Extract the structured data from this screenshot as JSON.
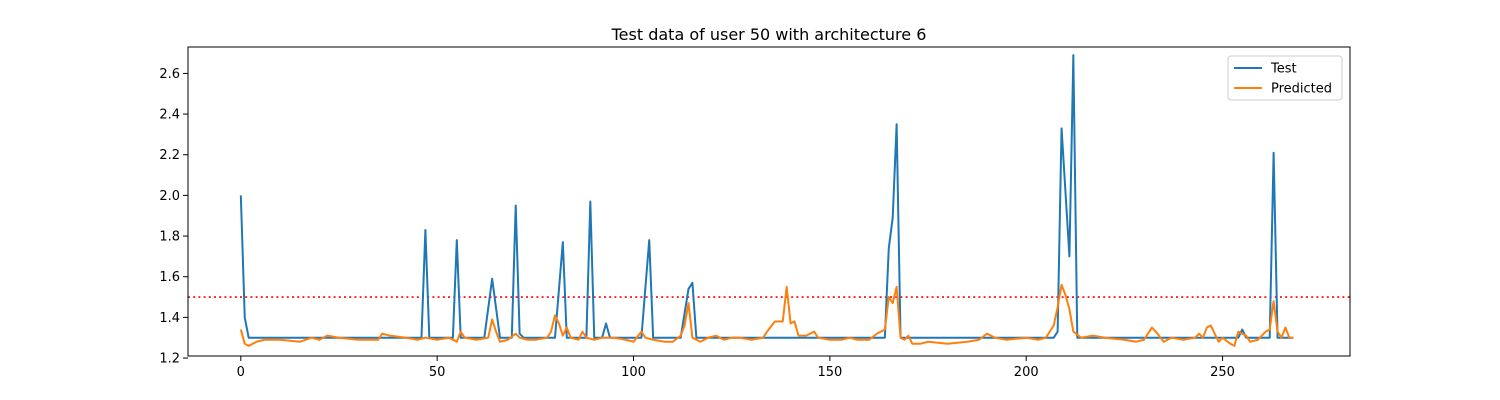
{
  "chart_data": {
    "type": "line",
    "title": "Test data of user 50 with architecture 6",
    "xlabel": "",
    "ylabel": "",
    "xlim": [
      -13.45,
      282.45
    ],
    "ylim": [
      1.21,
      2.73
    ],
    "x_ticks": [
      0,
      50,
      100,
      150,
      200,
      250
    ],
    "y_ticks": [
      1.2,
      1.4,
      1.6,
      1.8,
      2.0,
      2.2,
      2.4,
      2.6
    ],
    "y_tick_labels": [
      "1.2",
      "1.4",
      "1.6",
      "1.8",
      "2.0",
      "2.2",
      "2.4",
      "2.6"
    ],
    "grid": false,
    "legend_position": "top-right",
    "threshold": {
      "y": 1.5,
      "color": "#ff0000",
      "style": "dotted"
    },
    "series": [
      {
        "name": "Test",
        "color": "#1f77b4",
        "points": [
          [
            0,
            2.0
          ],
          [
            1,
            1.4
          ],
          [
            2,
            1.3
          ],
          [
            46,
            1.3
          ],
          [
            47,
            1.83
          ],
          [
            48,
            1.3
          ],
          [
            54,
            1.3
          ],
          [
            55,
            1.78
          ],
          [
            56,
            1.3
          ],
          [
            62,
            1.3
          ],
          [
            64,
            1.59
          ],
          [
            66,
            1.3
          ],
          [
            69,
            1.3
          ],
          [
            70,
            1.95
          ],
          [
            71,
            1.32
          ],
          [
            72,
            1.3
          ],
          [
            80,
            1.3
          ],
          [
            82,
            1.77
          ],
          [
            83,
            1.3
          ],
          [
            88,
            1.3
          ],
          [
            89,
            1.97
          ],
          [
            90,
            1.3
          ],
          [
            92,
            1.3
          ],
          [
            93,
            1.37
          ],
          [
            94,
            1.3
          ],
          [
            102,
            1.3
          ],
          [
            104,
            1.78
          ],
          [
            105,
            1.3
          ],
          [
            112,
            1.3
          ],
          [
            114,
            1.54
          ],
          [
            115,
            1.57
          ],
          [
            116,
            1.3
          ],
          [
            164,
            1.3
          ],
          [
            165,
            1.74
          ],
          [
            166,
            1.89
          ],
          [
            167,
            2.35
          ],
          [
            168,
            1.3
          ],
          [
            207,
            1.3
          ],
          [
            208,
            1.33
          ],
          [
            209,
            2.33
          ],
          [
            211,
            1.7
          ],
          [
            212,
            2.69
          ],
          [
            213,
            1.3
          ],
          [
            254,
            1.3
          ],
          [
            255,
            1.34
          ],
          [
            256,
            1.3
          ],
          [
            262,
            1.3
          ],
          [
            263,
            2.21
          ],
          [
            264,
            1.3
          ],
          [
            268,
            1.3
          ]
        ]
      },
      {
        "name": "Predicted",
        "color": "#ff7f0e",
        "points": [
          [
            0,
            1.34
          ],
          [
            1,
            1.27
          ],
          [
            2,
            1.26
          ],
          [
            4,
            1.28
          ],
          [
            6,
            1.29
          ],
          [
            10,
            1.29
          ],
          [
            15,
            1.28
          ],
          [
            18,
            1.3
          ],
          [
            20,
            1.29
          ],
          [
            22,
            1.31
          ],
          [
            25,
            1.3
          ],
          [
            30,
            1.29
          ],
          [
            35,
            1.29
          ],
          [
            36,
            1.32
          ],
          [
            38,
            1.31
          ],
          [
            42,
            1.3
          ],
          [
            45,
            1.29
          ],
          [
            47,
            1.3
          ],
          [
            50,
            1.29
          ],
          [
            53,
            1.3
          ],
          [
            55,
            1.28
          ],
          [
            56,
            1.33
          ],
          [
            57,
            1.3
          ],
          [
            60,
            1.29
          ],
          [
            63,
            1.3
          ],
          [
            64,
            1.39
          ],
          [
            65,
            1.33
          ],
          [
            66,
            1.28
          ],
          [
            68,
            1.29
          ],
          [
            70,
            1.32
          ],
          [
            71,
            1.3
          ],
          [
            73,
            1.29
          ],
          [
            75,
            1.29
          ],
          [
            78,
            1.3
          ],
          [
            79,
            1.33
          ],
          [
            80,
            1.41
          ],
          [
            81,
            1.37
          ],
          [
            82,
            1.31
          ],
          [
            83,
            1.35
          ],
          [
            84,
            1.3
          ],
          [
            86,
            1.29
          ],
          [
            87,
            1.33
          ],
          [
            88,
            1.3
          ],
          [
            90,
            1.29
          ],
          [
            92,
            1.3
          ],
          [
            95,
            1.3
          ],
          [
            98,
            1.29
          ],
          [
            100,
            1.28
          ],
          [
            102,
            1.33
          ],
          [
            103,
            1.3
          ],
          [
            105,
            1.29
          ],
          [
            108,
            1.28
          ],
          [
            110,
            1.28
          ],
          [
            112,
            1.31
          ],
          [
            113,
            1.36
          ],
          [
            114,
            1.47
          ],
          [
            115,
            1.3
          ],
          [
            117,
            1.28
          ],
          [
            119,
            1.3
          ],
          [
            121,
            1.31
          ],
          [
            123,
            1.29
          ],
          [
            125,
            1.3
          ],
          [
            127,
            1.3
          ],
          [
            130,
            1.29
          ],
          [
            133,
            1.3
          ],
          [
            134,
            1.33
          ],
          [
            136,
            1.38
          ],
          [
            138,
            1.38
          ],
          [
            139,
            1.55
          ],
          [
            140,
            1.37
          ],
          [
            141,
            1.38
          ],
          [
            142,
            1.31
          ],
          [
            144,
            1.31
          ],
          [
            146,
            1.33
          ],
          [
            147,
            1.3
          ],
          [
            150,
            1.29
          ],
          [
            153,
            1.29
          ],
          [
            155,
            1.3
          ],
          [
            157,
            1.29
          ],
          [
            160,
            1.29
          ],
          [
            162,
            1.32
          ],
          [
            164,
            1.34
          ],
          [
            165,
            1.5
          ],
          [
            166,
            1.47
          ],
          [
            167,
            1.55
          ],
          [
            168,
            1.3
          ],
          [
            169,
            1.29
          ],
          [
            170,
            1.31
          ],
          [
            171,
            1.27
          ],
          [
            173,
            1.27
          ],
          [
            175,
            1.28
          ],
          [
            180,
            1.27
          ],
          [
            185,
            1.28
          ],
          [
            188,
            1.29
          ],
          [
            190,
            1.32
          ],
          [
            192,
            1.3
          ],
          [
            195,
            1.29
          ],
          [
            200,
            1.3
          ],
          [
            203,
            1.29
          ],
          [
            205,
            1.3
          ],
          [
            207,
            1.36
          ],
          [
            208,
            1.45
          ],
          [
            209,
            1.56
          ],
          [
            210,
            1.51
          ],
          [
            211,
            1.44
          ],
          [
            212,
            1.33
          ],
          [
            214,
            1.3
          ],
          [
            217,
            1.31
          ],
          [
            220,
            1.3
          ],
          [
            225,
            1.29
          ],
          [
            228,
            1.28
          ],
          [
            230,
            1.29
          ],
          [
            232,
            1.35
          ],
          [
            233,
            1.33
          ],
          [
            235,
            1.28
          ],
          [
            237,
            1.3
          ],
          [
            240,
            1.29
          ],
          [
            243,
            1.3
          ],
          [
            244,
            1.32
          ],
          [
            245,
            1.3
          ],
          [
            246,
            1.35
          ],
          [
            247,
            1.36
          ],
          [
            248,
            1.32
          ],
          [
            249,
            1.28
          ],
          [
            250,
            1.3
          ],
          [
            252,
            1.27
          ],
          [
            253,
            1.26
          ],
          [
            254,
            1.33
          ],
          [
            256,
            1.31
          ],
          [
            257,
            1.28
          ],
          [
            259,
            1.29
          ],
          [
            261,
            1.33
          ],
          [
            262,
            1.34
          ],
          [
            263,
            1.48
          ],
          [
            264,
            1.33
          ],
          [
            265,
            1.3
          ],
          [
            266,
            1.35
          ],
          [
            267,
            1.3
          ],
          [
            268,
            1.3
          ]
        ]
      }
    ]
  }
}
